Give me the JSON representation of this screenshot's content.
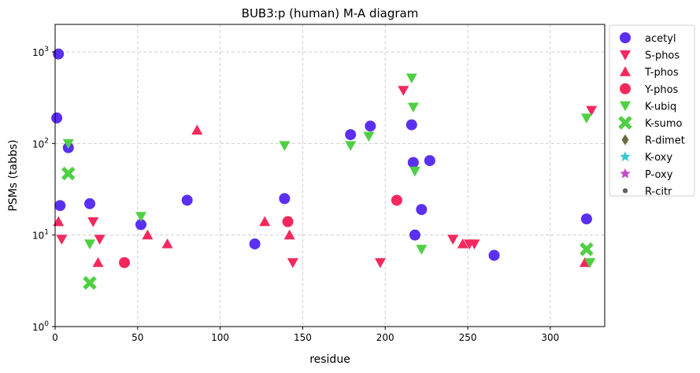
{
  "chart_data": {
    "type": "scatter",
    "title": "BUB3:p (human) M-A diagram",
    "xlabel": "residue",
    "ylabel": "PSMs (tabbs)",
    "xlim": [
      0,
      333
    ],
    "ylim": [
      1,
      2000
    ],
    "yscale": "log",
    "grid": true,
    "legend_position": "outside-right",
    "x_ticks": [
      0,
      50,
      100,
      150,
      200,
      250,
      300
    ],
    "x_tick_labels": [
      "0",
      "50",
      "100",
      "150",
      "200",
      "250",
      "300"
    ],
    "y_ticks": [
      1,
      10,
      100,
      1000
    ],
    "y_tick_labels": [
      "10^0",
      "10^1",
      "10^2",
      "10^3"
    ],
    "series": [
      {
        "name": "acetyl",
        "marker": "circle",
        "color": "#5b2ff0",
        "points": [
          [
            2,
            950
          ],
          [
            1,
            190
          ],
          [
            8,
            90
          ],
          [
            3,
            21
          ],
          [
            21,
            22
          ],
          [
            52,
            13
          ],
          [
            80,
            24
          ],
          [
            121,
            8
          ],
          [
            139,
            25
          ],
          [
            179,
            125
          ],
          [
            191,
            155
          ],
          [
            216,
            160
          ],
          [
            217,
            62
          ],
          [
            218,
            10
          ],
          [
            222,
            19
          ],
          [
            227,
            65
          ],
          [
            266,
            6
          ],
          [
            322,
            15
          ]
        ]
      },
      {
        "name": "S-phos",
        "marker": "triangle-down",
        "color": "#f5285e",
        "points": [
          [
            4,
            9
          ],
          [
            23,
            14
          ],
          [
            27,
            9
          ],
          [
            144,
            5
          ],
          [
            197,
            5
          ],
          [
            211,
            380
          ],
          [
            241,
            9
          ],
          [
            251,
            8
          ],
          [
            254,
            8
          ],
          [
            325,
            230
          ]
        ]
      },
      {
        "name": "T-phos",
        "marker": "triangle-up",
        "color": "#f5285e",
        "points": [
          [
            2,
            14
          ],
          [
            26,
            5
          ],
          [
            56,
            10
          ],
          [
            68,
            8
          ],
          [
            86,
            140
          ],
          [
            127,
            14
          ],
          [
            142,
            10
          ],
          [
            247,
            8
          ],
          [
            321,
            5
          ]
        ]
      },
      {
        "name": "Y-phos",
        "marker": "circle",
        "color": "#f5285e",
        "points": [
          [
            42,
            5
          ],
          [
            141,
            14
          ],
          [
            207,
            24
          ]
        ]
      },
      {
        "name": "K-ubiq",
        "marker": "triangle-down",
        "color": "#4fd042",
        "points": [
          [
            8,
            100
          ],
          [
            21,
            8
          ],
          [
            52,
            16
          ],
          [
            139,
            95
          ],
          [
            179,
            95
          ],
          [
            190,
            120
          ],
          [
            216,
            520
          ],
          [
            217,
            250
          ],
          [
            218,
            50
          ],
          [
            222,
            7
          ],
          [
            322,
            190
          ],
          [
            324,
            5
          ]
        ]
      },
      {
        "name": "K-sumo",
        "marker": "x",
        "color": "#4fd042",
        "points": [
          [
            8,
            47
          ],
          [
            21,
            3
          ],
          [
            322,
            7
          ]
        ]
      },
      {
        "name": "R-dimet",
        "marker": "diamond",
        "color": "#6b6b44",
        "points": []
      },
      {
        "name": "K-oxy",
        "marker": "star",
        "color": "#38c6d2",
        "points": []
      },
      {
        "name": "P-oxy",
        "marker": "star",
        "color": "#c34bc8",
        "points": []
      },
      {
        "name": "R-citr",
        "marker": "dot",
        "color": "#606060",
        "points": []
      }
    ]
  }
}
